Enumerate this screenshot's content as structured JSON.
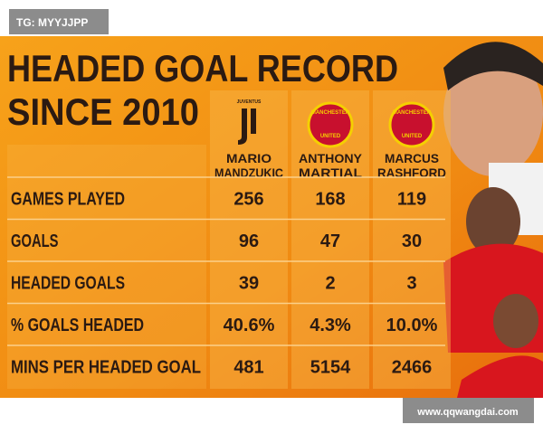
{
  "watermark": "TG: MYYJJPP",
  "source": "www.qqwangdai.com",
  "header": {
    "title": [
      "HEADED GOAL RECORD",
      "SINCE 2010"
    ]
  },
  "table": {
    "columns": [
      {
        "club": "JUVENTUS",
        "name": [
          "MARIO",
          "MANDZUKIC"
        ]
      },
      {
        "club": [
          "MANCHESTER",
          "UNITED"
        ],
        "name": [
          "ANTHONY",
          "MARTIAL"
        ]
      },
      {
        "club": [
          "MANCHESTER",
          "UNITED"
        ],
        "name": [
          "MARCUS",
          "RASHFORD"
        ]
      }
    ],
    "rows": [
      [
        "GAMES PLAYED",
        256,
        168,
        119
      ],
      [
        "GOALS",
        96,
        47,
        30
      ],
      [
        "HEADED GOALS",
        39,
        2,
        3
      ],
      [
        "% GOALS HEADED",
        "40.6%",
        "4.3%",
        "10.0%"
      ],
      [
        "MINS PER HEADED GOAL",
        481,
        5154,
        2466
      ]
    ]
  }
}
